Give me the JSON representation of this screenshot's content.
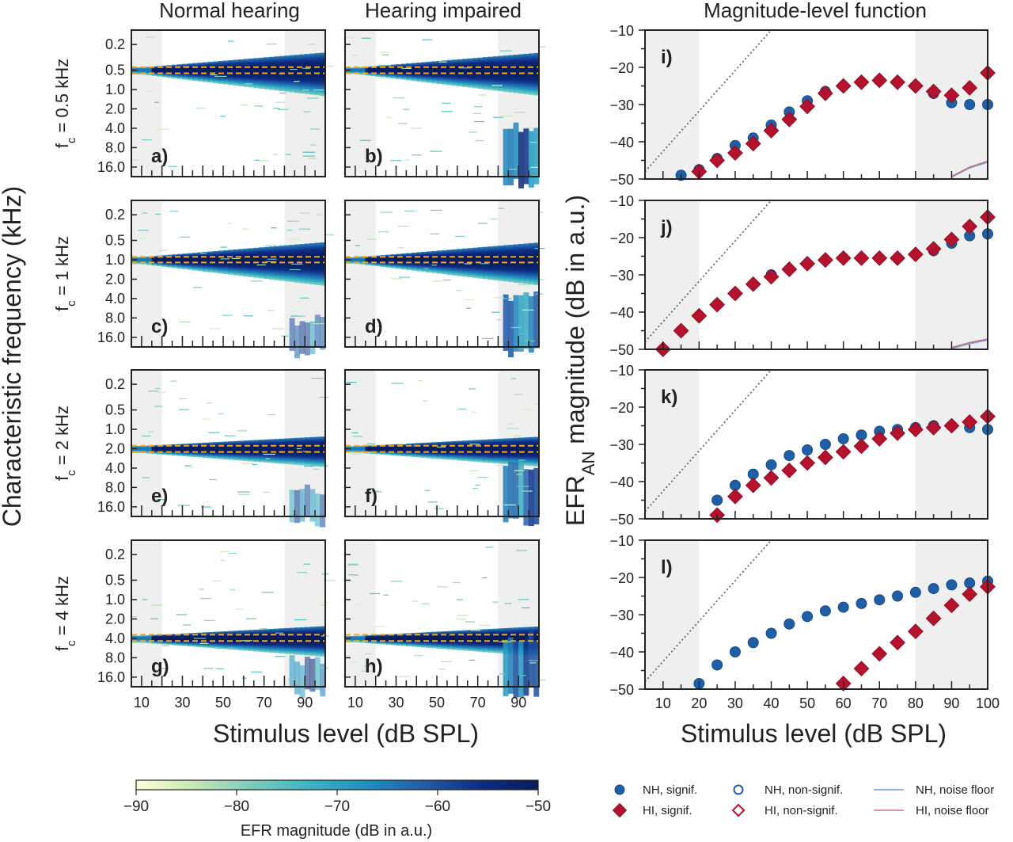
{
  "column_titles": {
    "nh": "Normal hearing",
    "hi": "Hearing impaired",
    "mag": "Magnitude-level function"
  },
  "row_labels": [
    "f_c = 0.5 kHz",
    "f_c = 1 kHz",
    "f_c = 2 kHz",
    "f_c = 4 kHz"
  ],
  "row_label_parts": [
    {
      "f": "f",
      "sub": "c",
      "rest": " = 0.5 kHz"
    },
    {
      "f": "f",
      "sub": "c",
      "rest": " = 1 kHz"
    },
    {
      "f": "f",
      "sub": "c",
      "rest": " = 2 kHz"
    },
    {
      "f": "f",
      "sub": "c",
      "rest": " = 4 kHz"
    }
  ],
  "left_ylabel": "Characteristic frequency (kHz)",
  "xlabel": "Stimulus level (dB SPL)",
  "right_ylabel": {
    "main": "EFR",
    "sub": "AN",
    "rest": " magnitude (dB in a.u.)"
  },
  "colorbar": {
    "label": "EFR magnitude (dB in a.u.)",
    "ticks": [
      "−90",
      "−80",
      "−70",
      "−60",
      "−50"
    ],
    "range": [
      -90,
      -50
    ],
    "colors": [
      "#ffffd9",
      "#c7e9b4",
      "#7fcdbb",
      "#41b6c4",
      "#1d91c0",
      "#225ea8",
      "#0c2c84",
      "#081d58"
    ]
  },
  "legend": {
    "nh_sig": "NH, signif.",
    "nh_nonsig": "NH, non-signif.",
    "nh_noise": "NH, noise floor",
    "hi_sig": "HI, signif.",
    "hi_nonsig": "HI, non-signif.",
    "hi_noise": "HI, noise floor"
  },
  "colors": {
    "nh": "#1f5fa8",
    "hi": "#b5122e",
    "nh_noise": "#6a9ad0",
    "hi_noise": "#c87080",
    "shade": "#efefef",
    "target": "#f5a623"
  },
  "chart_data": [
    {
      "type": "heatmap",
      "panels": [
        "a)",
        "b)",
        "c)",
        "d)",
        "e)",
        "f)",
        "g)",
        "h)"
      ],
      "yticks": [
        "0.2",
        "0.5",
        "1.0",
        "2.0",
        "4.0",
        "8.0",
        "16.0"
      ],
      "xticks": [
        "10",
        "30",
        "50",
        "70",
        "90"
      ],
      "x_range": [
        5,
        100
      ],
      "shaded_levels": [
        [
          5,
          20
        ],
        [
          80,
          100
        ]
      ],
      "target_bands_khz": [
        [
          0.45,
          0.56
        ],
        [
          0.9,
          1.1
        ],
        [
          1.8,
          2.25
        ],
        [
          3.5,
          4.4
        ]
      ]
    },
    {
      "type": "scatter",
      "panels": [
        "i)",
        "j)",
        "k)",
        "l)"
      ],
      "xlim": [
        5,
        100
      ],
      "ylim": [
        -50,
        -10
      ],
      "xticks": [
        "10",
        "20",
        "30",
        "40",
        "50",
        "60",
        "70",
        "80",
        "90",
        "100"
      ],
      "yticks": [
        "−10",
        "−20",
        "−30",
        "−40",
        "−50"
      ],
      "x": [
        10,
        15,
        20,
        25,
        30,
        35,
        40,
        45,
        50,
        55,
        60,
        65,
        70,
        75,
        80,
        85,
        90,
        95,
        100
      ],
      "series": [
        {
          "name": "NH, signif.",
          "panel": "i)",
          "values": [
            null,
            -49,
            -47.5,
            -44.5,
            -41,
            -39,
            -35.5,
            -32,
            -29,
            -26.5,
            -25,
            -24,
            -23.5,
            -24,
            -25,
            -27,
            -29.5,
            -30,
            -30
          ]
        },
        {
          "name": "HI, signif.",
          "panel": "i)",
          "values": [
            null,
            null,
            -48,
            -45,
            -43,
            -40.5,
            -37,
            -34,
            -30.5,
            -27,
            -25,
            -24,
            -23.5,
            -24,
            -25,
            -26.5,
            -27.5,
            -25.5,
            -21.5
          ]
        },
        {
          "name": "NH, signif.",
          "panel": "j)",
          "values": [
            null,
            -45,
            -41,
            -38,
            -35,
            -32.5,
            -30,
            -28.5,
            -27,
            -26,
            -25.5,
            -25.5,
            -25.5,
            -25.5,
            -24.5,
            -23.5,
            -21.5,
            -19.5,
            -19
          ]
        },
        {
          "name": "HI, signif.",
          "panel": "j)",
          "values": [
            -50,
            -45,
            -41,
            -38,
            -35,
            -32.5,
            -30.5,
            -28.5,
            -27,
            -26,
            -25.5,
            -25.5,
            -25.5,
            -25.5,
            -24.5,
            -23,
            -20.5,
            -17,
            -14.5
          ]
        },
        {
          "name": "NH, signif.",
          "panel": "k)",
          "values": [
            null,
            null,
            null,
            -45,
            -41,
            -38,
            -35.5,
            -33,
            -31.5,
            -30,
            -28.5,
            -27.5,
            -26.5,
            -26,
            -25.5,
            -25,
            -25,
            -25.5,
            -26
          ]
        },
        {
          "name": "HI, signif.",
          "panel": "k)",
          "values": [
            null,
            null,
            null,
            -49,
            -44,
            -41,
            -39,
            -37,
            -35,
            -33.5,
            -32,
            -30.5,
            -28.5,
            -27,
            -26,
            -25.5,
            -25,
            -24,
            -22.5
          ]
        },
        {
          "name": "NH, signif.",
          "panel": "l)",
          "values": [
            null,
            null,
            -48.5,
            -43.5,
            -40,
            -37.5,
            -35,
            -32.5,
            -30.5,
            -29,
            -28,
            -27,
            -26,
            -25,
            -24,
            -23,
            -22,
            -21.5,
            -21
          ]
        },
        {
          "name": "HI, signif.",
          "panel": "l)",
          "values": [
            null,
            null,
            null,
            null,
            null,
            null,
            null,
            null,
            null,
            null,
            -48.5,
            -44.5,
            -40.5,
            -37.5,
            -34.5,
            -31,
            -27.5,
            -24.5,
            -22.5
          ]
        }
      ],
      "noise_floor": {
        "x": [
          90,
          95,
          100
        ],
        "nh": {
          "i)": [
            -49.5,
            -47,
            -45.5
          ],
          "j)": [
            -49.8,
            -48.5,
            -47.5
          ]
        },
        "hi": {
          "i)": [
            -49.3,
            -46.8,
            -45.2
          ],
          "j)": [
            -49.5,
            -48.2,
            -47.2
          ]
        }
      }
    }
  ]
}
